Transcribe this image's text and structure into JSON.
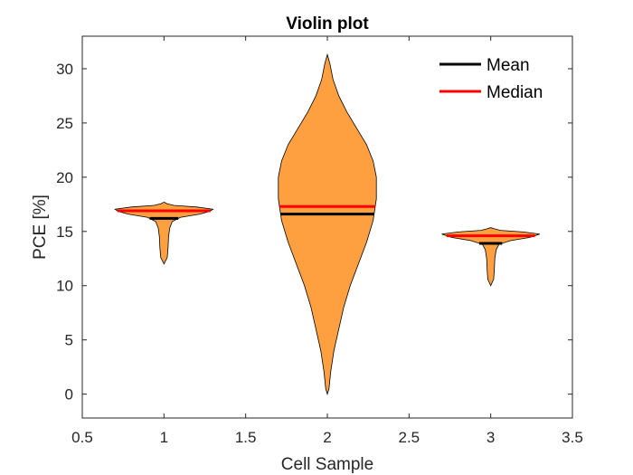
{
  "chart_data": {
    "type": "violin",
    "title": "Violin plot",
    "xlabel": "Cell Sample",
    "ylabel": "PCE [%]",
    "xlim": [
      0.5,
      3.5
    ],
    "ylim": [
      -2.2,
      33
    ],
    "xticks": [
      0.5,
      1,
      1.5,
      2,
      2.5,
      3,
      3.5
    ],
    "xtick_labels": [
      "0.5",
      "1",
      "1.5",
      "2",
      "2.5",
      "3",
      "3.5"
    ],
    "yticks": [
      0,
      5,
      10,
      15,
      20,
      25,
      30
    ],
    "ytick_labels": [
      "0",
      "5",
      "10",
      "15",
      "20",
      "25",
      "30"
    ],
    "grid": false,
    "legend": {
      "position": "top-right",
      "entries": [
        {
          "label": "Mean",
          "color": "#000000"
        },
        {
          "label": "Median",
          "color": "#ff0000"
        }
      ]
    },
    "colors": {
      "fill": "#ffa040",
      "outline": "#000000",
      "mean": "#000000",
      "median": "#ff0000"
    },
    "series": [
      {
        "category": 1,
        "mean": 16.2,
        "median": 16.9,
        "profile": [
          [
            12.0,
            0.0
          ],
          [
            12.6,
            0.02
          ],
          [
            13.5,
            0.025
          ],
          [
            14.5,
            0.028
          ],
          [
            15.3,
            0.035
          ],
          [
            15.9,
            0.05
          ],
          [
            16.3,
            0.1
          ],
          [
            16.6,
            0.22
          ],
          [
            16.85,
            0.28
          ],
          [
            17.05,
            0.3
          ],
          [
            17.25,
            0.2
          ],
          [
            17.4,
            0.06
          ],
          [
            17.55,
            0.02
          ],
          [
            17.7,
            0.0
          ]
        ]
      },
      {
        "category": 2,
        "mean": 16.6,
        "median": 17.3,
        "profile": [
          [
            0.0,
            0.0
          ],
          [
            0.5,
            0.01
          ],
          [
            2.0,
            0.02
          ],
          [
            4.0,
            0.04
          ],
          [
            6.0,
            0.07
          ],
          [
            8.0,
            0.1
          ],
          [
            10.0,
            0.14
          ],
          [
            12.0,
            0.19
          ],
          [
            14.0,
            0.24
          ],
          [
            16.0,
            0.28
          ],
          [
            18.0,
            0.3
          ],
          [
            20.0,
            0.3
          ],
          [
            21.5,
            0.28
          ],
          [
            23.0,
            0.24
          ],
          [
            24.5,
            0.18
          ],
          [
            26.0,
            0.12
          ],
          [
            27.5,
            0.07
          ],
          [
            29.0,
            0.035
          ],
          [
            30.5,
            0.015
          ],
          [
            31.3,
            0.0
          ]
        ]
      },
      {
        "category": 3,
        "mean": 13.9,
        "median": 14.6,
        "profile": [
          [
            10.0,
            0.0
          ],
          [
            10.6,
            0.018
          ],
          [
            11.5,
            0.022
          ],
          [
            12.5,
            0.025
          ],
          [
            13.3,
            0.033
          ],
          [
            13.8,
            0.05
          ],
          [
            14.15,
            0.12
          ],
          [
            14.45,
            0.24
          ],
          [
            14.75,
            0.3
          ],
          [
            14.95,
            0.2
          ],
          [
            15.1,
            0.06
          ],
          [
            15.25,
            0.02
          ],
          [
            15.35,
            0.0
          ]
        ]
      }
    ]
  }
}
